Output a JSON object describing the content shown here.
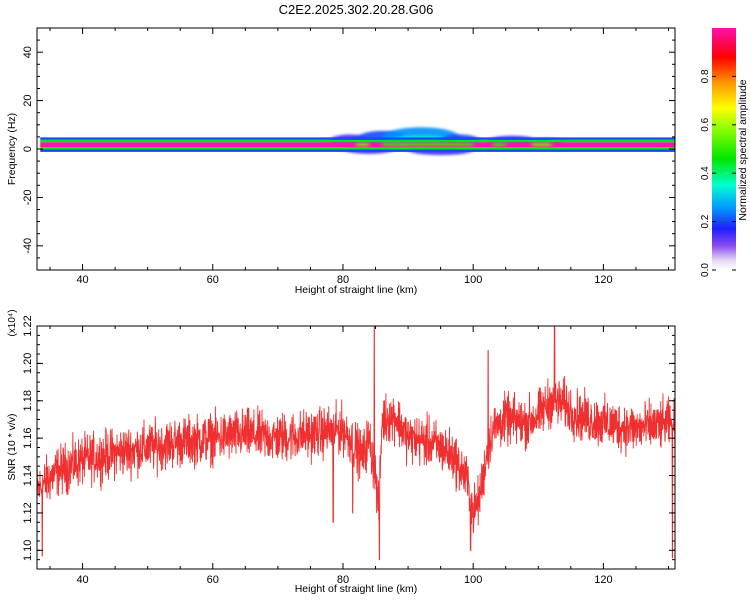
{
  "title": "C2E2.2025.302.20.28.G06",
  "colorbar": {
    "label": "Normalized spectral amplitude",
    "ticks": [
      "0.0",
      "0.2",
      "0.4",
      "0.6",
      "0.8"
    ],
    "tick_values": [
      0.0,
      0.2,
      0.4,
      0.6,
      0.8
    ]
  },
  "chart_data": [
    {
      "type": "heatmap",
      "title": "C2E2.2025.302.20.28.G06",
      "xlabel": "Height of straight line (km)",
      "ylabel": "Frequency (Hz)",
      "xlim": [
        33,
        131
      ],
      "ylim": [
        -50,
        50
      ],
      "xticks": [
        "40",
        "60",
        "80",
        "100",
        "120"
      ],
      "xtick_values": [
        40,
        60,
        80,
        100,
        120
      ],
      "yticks": [
        "40",
        "20",
        "0",
        "-20",
        "-40"
      ],
      "ytick_values": [
        40,
        20,
        0,
        -20,
        -40
      ],
      "colorbar_range": [
        0,
        1
      ],
      "peak_frequency_hz": 2,
      "bands": [
        {
          "x0": 33.5,
          "x1": 131,
          "y0": 0.8,
          "y1": 2.8,
          "value": 1.0
        },
        {
          "x0": 33.5,
          "x1": 131,
          "y0": -0.2,
          "y1": 0.8,
          "value": 0.45
        },
        {
          "x0": 33.5,
          "x1": 131,
          "y0": 2.8,
          "y1": 3.8,
          "value": 0.45
        },
        {
          "x0": 33.5,
          "x1": 131,
          "y0": -1.2,
          "y1": -0.2,
          "value": 0.2
        },
        {
          "x0": 33.5,
          "x1": 131,
          "y0": 3.8,
          "y1": 4.8,
          "value": 0.2
        }
      ],
      "blobs": [
        {
          "x": 81,
          "y": 3.5,
          "rx": 3,
          "ry": 2.5,
          "value": 0.15
        },
        {
          "x": 86,
          "y": 4.0,
          "rx": 4,
          "ry": 3.5,
          "value": 0.2
        },
        {
          "x": 92,
          "y": 4.5,
          "rx": 6,
          "ry": 4.5,
          "value": 0.25
        },
        {
          "x": 92,
          "y": 2.5,
          "rx": 6,
          "ry": 3,
          "value": 0.35
        },
        {
          "x": 98,
          "y": 3.5,
          "rx": 3,
          "ry": 2.5,
          "value": 0.2
        },
        {
          "x": 106,
          "y": 3.0,
          "rx": 4,
          "ry": 2.5,
          "value": 0.15
        },
        {
          "x": 111,
          "y": 2.5,
          "rx": 3,
          "ry": 2,
          "value": 0.2
        },
        {
          "x": 84,
          "y": 0.0,
          "rx": 4,
          "ry": 2,
          "value": 0.15
        },
        {
          "x": 95,
          "y": -0.5,
          "rx": 5,
          "ry": 2,
          "value": 0.15
        }
      ],
      "dips": [
        {
          "x0": 82,
          "x1": 84,
          "value": 0.55
        },
        {
          "x0": 86,
          "x1": 100,
          "value": 0.5
        },
        {
          "x0": 103,
          "x1": 105,
          "value": 0.5
        },
        {
          "x0": 109,
          "x1": 112,
          "value": 0.55
        }
      ]
    },
    {
      "type": "line",
      "xlabel": "Height of straight line (km)",
      "ylabel": "SNR (10 * v/v)",
      "yscale_label": "(x10⁴)",
      "xlim": [
        33,
        131
      ],
      "ylim": [
        1.09,
        1.22
      ],
      "xticks": [
        "40",
        "60",
        "80",
        "100",
        "120"
      ],
      "xtick_values": [
        40,
        60,
        80,
        100,
        120
      ],
      "yticks": [
        "1.22",
        "1.20",
        "1.18",
        "1.16",
        "1.14",
        "1.12",
        "1.10"
      ],
      "ytick_values": [
        1.22,
        1.2,
        1.18,
        1.16,
        1.14,
        1.12,
        1.1
      ],
      "series": [
        {
          "color": "#f03030",
          "x": [
            33,
            36,
            40,
            45,
            50,
            55,
            60,
            65,
            70,
            75,
            80,
            82,
            83,
            84,
            85,
            85.5,
            86,
            88,
            90,
            93,
            95,
            97,
            99,
            100,
            101,
            102,
            103,
            105,
            108,
            110,
            112,
            114,
            116,
            120,
            125,
            131
          ],
          "values": [
            1.132,
            1.142,
            1.148,
            1.152,
            1.155,
            1.158,
            1.16,
            1.162,
            1.16,
            1.162,
            1.165,
            1.155,
            1.15,
            1.16,
            1.14,
            1.12,
            1.17,
            1.172,
            1.16,
            1.158,
            1.155,
            1.15,
            1.138,
            1.12,
            1.128,
            1.15,
            1.165,
            1.17,
            1.168,
            1.172,
            1.18,
            1.178,
            1.172,
            1.168,
            1.165,
            1.168
          ],
          "noise_amplitude": 0.013,
          "spikes": [
            {
              "x": 85.6,
              "value": 1.095
            },
            {
              "x": 84.8,
              "value": 1.222
            },
            {
              "x": 78.5,
              "value": 1.115
            },
            {
              "x": 112.5,
              "value": 1.222
            },
            {
              "x": 33.8,
              "value": 1.097
            },
            {
              "x": 130.6,
              "value": 1.096
            },
            {
              "x": 102.3,
              "value": 1.207
            },
            {
              "x": 99.6,
              "value": 1.1
            },
            {
              "x": 81.5,
              "value": 1.12
            }
          ]
        }
      ]
    }
  ]
}
